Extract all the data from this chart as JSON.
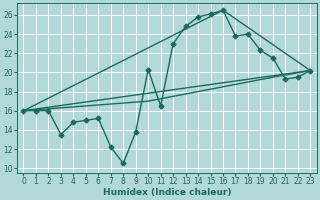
{
  "background_color": "#b2d8d8",
  "grid_color": "#d0e8e8",
  "line_color": "#1a6b5a",
  "marker_style": "D",
  "marker_size": 2.5,
  "line_width": 1.0,
  "xlabel": "Humidex (Indice chaleur)",
  "xlabel_fontsize": 6.5,
  "tick_fontsize": 5.5,
  "xlim": [
    -0.5,
    23.5
  ],
  "ylim": [
    9.5,
    27.2
  ],
  "xticks": [
    0,
    1,
    2,
    3,
    4,
    5,
    6,
    7,
    8,
    9,
    10,
    11,
    12,
    13,
    14,
    15,
    16,
    17,
    18,
    19,
    20,
    21,
    22,
    23
  ],
  "yticks": [
    10,
    12,
    14,
    16,
    18,
    20,
    22,
    24,
    26
  ],
  "series1": [
    [
      0,
      16.0
    ],
    [
      1,
      16.0
    ],
    [
      2,
      16.0
    ],
    [
      3,
      13.5
    ],
    [
      4,
      14.8
    ],
    [
      5,
      15.0
    ],
    [
      6,
      15.2
    ],
    [
      7,
      12.2
    ],
    [
      8,
      10.5
    ],
    [
      9,
      13.8
    ],
    [
      10,
      20.3
    ],
    [
      11,
      16.5
    ],
    [
      12,
      23.0
    ],
    [
      13,
      24.8
    ],
    [
      14,
      25.8
    ],
    [
      15,
      26.1
    ],
    [
      16,
      26.5
    ],
    [
      17,
      23.8
    ],
    [
      18,
      24.0
    ],
    [
      19,
      22.3
    ],
    [
      20,
      21.5
    ],
    [
      21,
      19.3
    ],
    [
      22,
      19.5
    ],
    [
      23,
      20.2
    ]
  ],
  "line_straight": [
    [
      0,
      16.0
    ],
    [
      23,
      20.2
    ]
  ],
  "line_peak": [
    [
      0,
      16.0
    ],
    [
      16,
      26.5
    ],
    [
      23,
      20.2
    ]
  ],
  "line_regression": [
    [
      0,
      16.0
    ],
    [
      10,
      17.0
    ],
    [
      16,
      18.5
    ],
    [
      20,
      19.5
    ],
    [
      23,
      20.2
    ]
  ]
}
